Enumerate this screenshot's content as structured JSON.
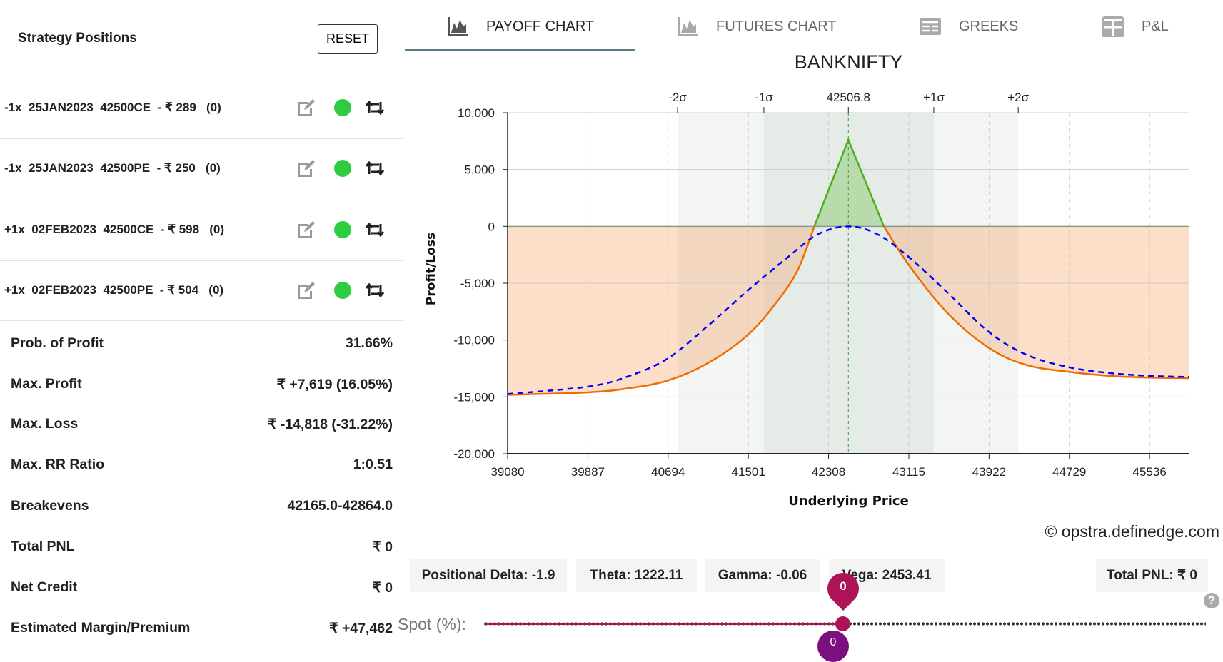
{
  "left": {
    "title": "Strategy Positions",
    "reset_label": "RESET",
    "positions": [
      {
        "text": "-1x  25JAN2023  42500CE  - ₹ 289   (0)",
        "active": true
      },
      {
        "text": "-1x  25JAN2023  42500PE  - ₹ 250   (0)",
        "active": true
      },
      {
        "text": "+1x  02FEB2023  42500CE  - ₹ 598   (0)",
        "active": true
      },
      {
        "text": "+1x  02FEB2023  42500PE  - ₹ 504   (0)",
        "active": true
      }
    ],
    "stats": [
      {
        "label": "Prob. of Profit",
        "value": "31.66%"
      },
      {
        "label": "Max. Profit",
        "value": "₹ +7,619 (16.05%)"
      },
      {
        "label": "Max. Loss",
        "value": "₹ -14,818 (-31.22%)"
      },
      {
        "label": "Max. RR Ratio",
        "value": "1:0.51"
      },
      {
        "label": "Breakevens",
        "value": "42165.0-42864.0"
      },
      {
        "label": "Total PNL",
        "value": "₹ 0"
      },
      {
        "label": "Net Credit",
        "value": "₹ 0"
      },
      {
        "label": "Estimated Margin/Premium",
        "value": "₹ +47,462"
      }
    ]
  },
  "tabs": [
    {
      "label": "PAYOFF CHART",
      "icon": "area-chart-icon",
      "active": true
    },
    {
      "label": "FUTURES CHART",
      "icon": "area-chart-icon"
    },
    {
      "label": "GREEKS",
      "icon": "table-icon"
    },
    {
      "label": "P&L",
      "icon": "grid-icon"
    }
  ],
  "greeks": {
    "delta": "Positional Delta: -1.9",
    "theta": "Theta: 1222.11",
    "gamma": "Gamma: -0.06",
    "vega": "Vega: 2453.41",
    "total": "Total PNL: ₹ 0"
  },
  "copyright": "© opstra.definedge.com",
  "slider": {
    "label": "Spot (%):",
    "value": "0",
    "bottom_value": "0"
  },
  "colors": {
    "profit": "#4caf1a",
    "loss": "#ef6c00",
    "t0": "#0000ff",
    "slider": "#ad1457"
  },
  "chart_data": {
    "type": "line",
    "title": "BANKNIFTY",
    "xlabel": "Underlying Price",
    "ylabel": "Profit/Loss",
    "xlim": [
      39080,
      45937
    ],
    "ylim": [
      -20000,
      10000
    ],
    "xticks": [
      39080,
      39887,
      40694,
      41501,
      42308,
      43115,
      43922,
      44729,
      45536
    ],
    "yticks": [
      10000,
      5000,
      0,
      -5000,
      -10000,
      -15000,
      -20000
    ],
    "ytick_labels": [
      "10,000",
      "5,000",
      "0",
      "-5,000",
      "-10,000",
      "-15,000",
      "-20,000"
    ],
    "spot": 42506.8,
    "spot_label": "42506.8",
    "sigma": [
      {
        "label": "-2σ",
        "x": 40789
      },
      {
        "label": "-1σ",
        "x": 41657
      },
      {
        "label": "+1σ",
        "x": 43366
      },
      {
        "label": "+2σ",
        "x": 44215
      }
    ],
    "series": [
      {
        "kind": "expiry",
        "x": [
          39080,
          39887,
          40290,
          40694,
          41100,
          41501,
          41800,
          42000,
          42165,
          42506.8,
          42864,
          43115,
          43500,
          43922,
          44300,
          44729,
          45133,
          45536,
          45937
        ],
        "y": [
          -14818,
          -14600,
          -14250,
          -13550,
          -12000,
          -9500,
          -6500,
          -3800,
          0,
          7619,
          0,
          -3400,
          -7600,
          -10700,
          -12200,
          -12800,
          -13150,
          -13300,
          -13350
        ]
      },
      {
        "kind": "t0",
        "x": [
          39080,
          39887,
          40290,
          40694,
          41100,
          41501,
          41900,
          42200,
          42506.8,
          42800,
          43115,
          43500,
          43922,
          44300,
          44729,
          45133,
          45536,
          45937
        ],
        "y": [
          -14750,
          -14100,
          -13200,
          -11600,
          -8700,
          -5600,
          -2700,
          -700,
          0,
          -700,
          -2700,
          -5800,
          -9300,
          -11300,
          -12400,
          -12900,
          -13150,
          -13250
        ]
      }
    ]
  }
}
